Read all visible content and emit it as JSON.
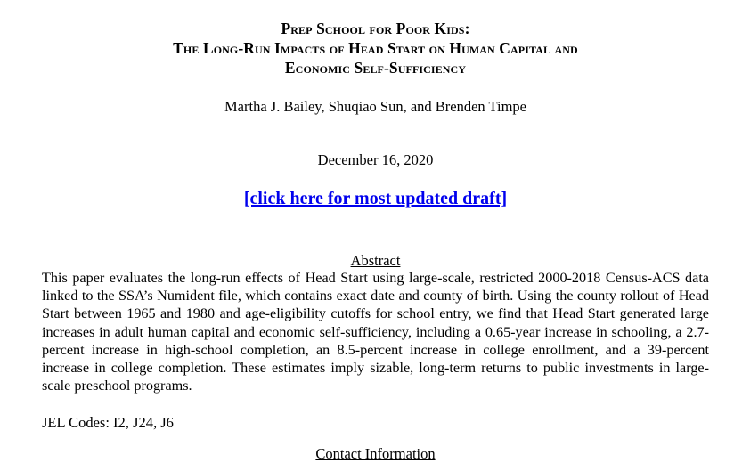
{
  "paper": {
    "title_lines": [
      "Prep School for Poor Kids:",
      "The Long-Run Impacts of Head Start on Human Capital and",
      "Economic Self-Sufficiency"
    ],
    "authors": "Martha J. Bailey, Shuqiao Sun, and Brenden Timpe",
    "date": "December 16, 2020",
    "draft_link_text": "[click here for most updated draft]",
    "abstract_heading": "Abstract",
    "abstract_text": "This paper evaluates the long-run effects of Head Start using large-scale, restricted 2000-2018 Census-ACS data linked to the SSA’s Numident file, which contains exact date and county of birth. Using the county rollout of Head Start between 1965 and 1980 and age-eligibility cutoffs for school entry, we find that Head Start generated large increases in adult human capital and economic self-sufficiency, including a 0.65-year increase in schooling, a 2.7-percent increase in high-school completion, an 8.5-percent increase in college enrollment, and a 39-percent increase in college completion. These estimates imply sizable, long-term returns to public investments in large-scale preschool programs.",
    "jel_codes": "JEL Codes: I2, J24, J6",
    "contact_heading": "Contact Information"
  },
  "colors": {
    "link": "#0000ee",
    "text": "#000000",
    "background": "#ffffff"
  }
}
